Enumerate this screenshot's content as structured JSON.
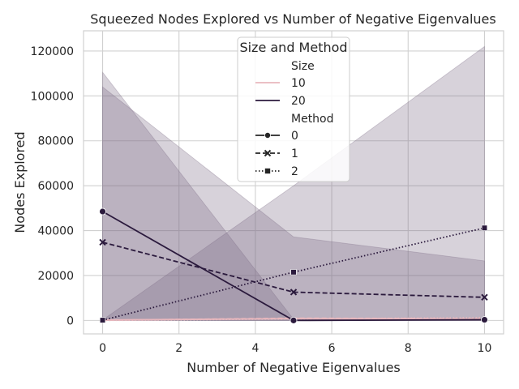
{
  "chart_data": {
    "type": "line",
    "title": "Squeezed Nodes Explored vs Number of Negative Eigenvalues",
    "xlabel": "Number of Negative Eigenvalues",
    "ylabel": "Nodes Explored",
    "xlim": [
      -0.5,
      10.5
    ],
    "ylim": [
      -6000,
      129000
    ],
    "x_ticks": [
      0,
      2,
      4,
      6,
      8,
      10
    ],
    "y_ticks": [
      0,
      20000,
      40000,
      60000,
      80000,
      100000,
      120000
    ],
    "grid": true,
    "legend": {
      "placement": "top-center",
      "title": "Size and Method",
      "size_header": "Size",
      "method_header": "Method",
      "size_entries": [
        {
          "label": "10",
          "color": "#e8b7bd"
        },
        {
          "label": "20",
          "color": "#2b1a3d"
        }
      ],
      "method_entries": [
        {
          "label": "0",
          "dash": "solid",
          "marker": "circle"
        },
        {
          "label": "1",
          "dash": "dashed",
          "marker": "x"
        },
        {
          "label": "2",
          "dash": "dotted",
          "marker": "square"
        }
      ]
    },
    "series": [
      {
        "size": "10",
        "method": "0",
        "x": [
          0,
          5,
          10
        ],
        "y": [
          200,
          800,
          500
        ],
        "color": "#e8b7bd"
      },
      {
        "size": "10",
        "method": "1",
        "x": [
          0,
          5,
          10
        ],
        "y": [
          100,
          1000,
          800
        ],
        "color": "#e8b7bd"
      },
      {
        "size": "10",
        "method": "2",
        "x": [
          0,
          5,
          10
        ],
        "y": [
          0,
          700,
          1200
        ],
        "color": "#e8b7bd"
      },
      {
        "size": "20",
        "method": "0",
        "x": [
          0,
          5,
          10
        ],
        "y": [
          48500,
          0,
          300
        ],
        "color": "#2b1a3d",
        "ci_upper": [
          110500,
          500,
          1000
        ],
        "ci_lower": [
          0,
          0,
          0
        ]
      },
      {
        "size": "20",
        "method": "1",
        "x": [
          0,
          5,
          10
        ],
        "y": [
          34800,
          12600,
          10300
        ],
        "color": "#2b1a3d",
        "ci_upper": [
          104000,
          37200,
          26500
        ],
        "ci_lower": [
          0,
          0,
          0
        ]
      },
      {
        "size": "20",
        "method": "2",
        "x": [
          0,
          5,
          10
        ],
        "y": [
          100,
          21500,
          41200
        ],
        "color": "#2b1a3d",
        "ci_upper": [
          200,
          60000,
          122000
        ],
        "ci_lower": [
          0,
          0,
          0
        ]
      }
    ]
  }
}
